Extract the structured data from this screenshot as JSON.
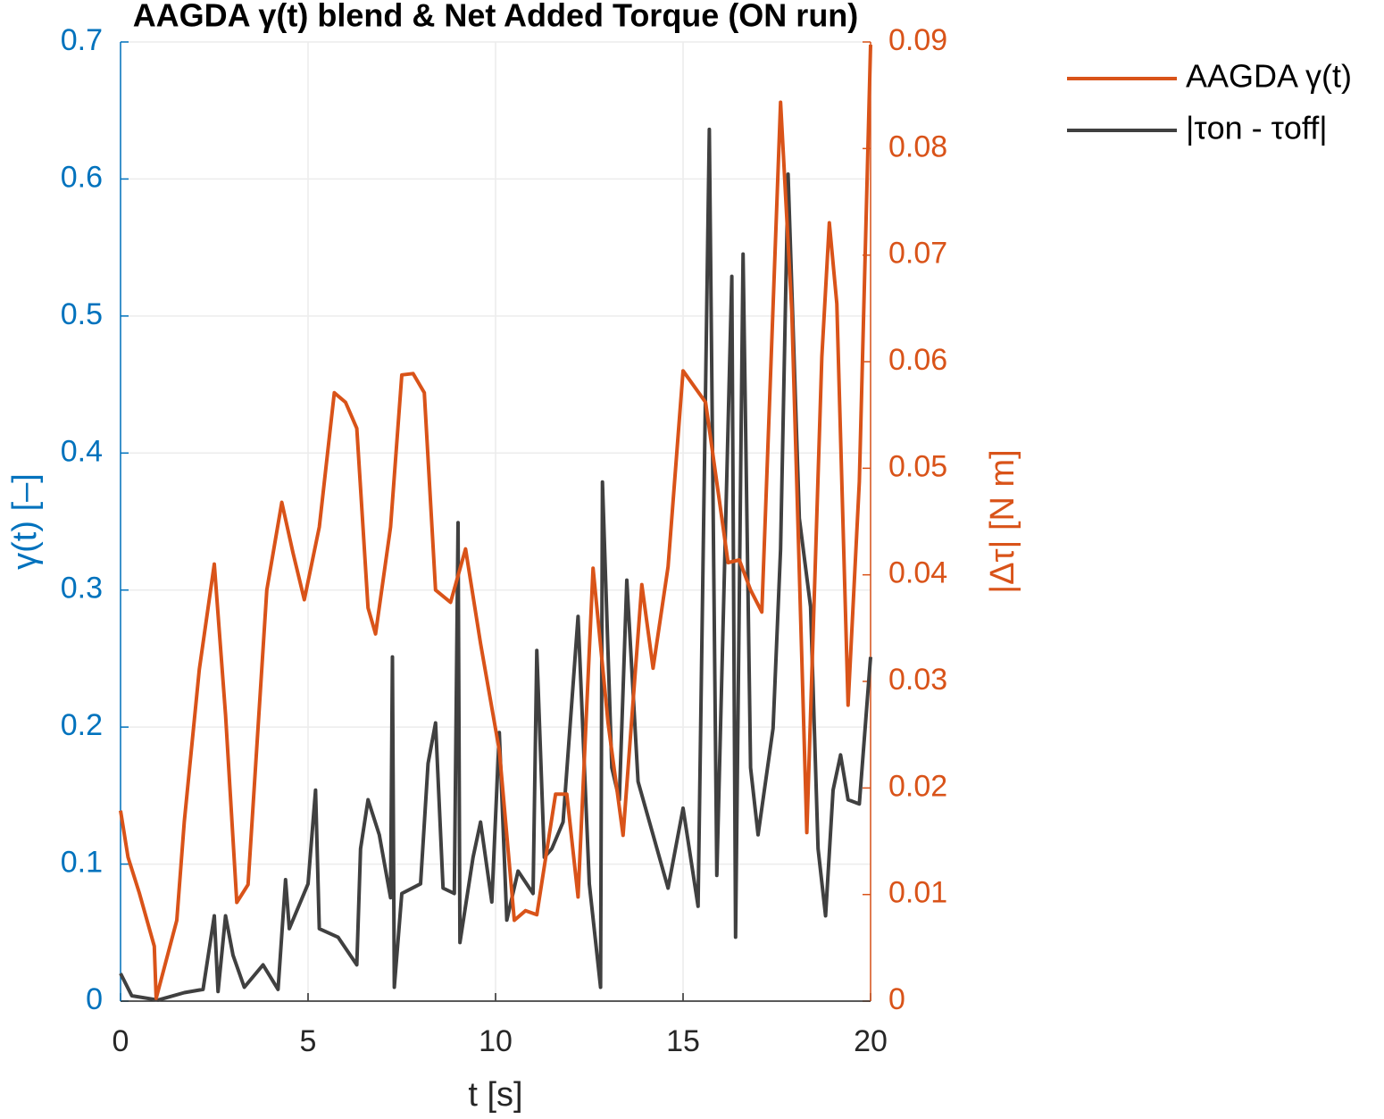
{
  "chart_data": {
    "type": "line",
    "title": "AAGDA γ(t) blend & Net Added Torque (ON run)",
    "x_label": "t [s]",
    "y_label": "γ(t) [–]",
    "y2_label": "|Δτ| [N m]",
    "xlim": [
      0,
      20
    ],
    "xticks": [
      0,
      5,
      10,
      15,
      20
    ],
    "ylim": [
      0,
      0.7
    ],
    "yticks": [
      0,
      0.1,
      0.2,
      0.3,
      0.4,
      0.5,
      0.6,
      0.7
    ],
    "y2lim": [
      0,
      0.09
    ],
    "y2ticks": [
      0,
      0.01,
      0.02,
      0.03,
      0.04,
      0.05,
      0.06,
      0.07,
      0.08,
      0.09
    ],
    "grid": true,
    "legend": "outside-right",
    "y_color": "#0072bd",
    "y2_color": "#d95319",
    "series": [
      {
        "name": "AAGDA γ(t)",
        "color": "#d95319",
        "axis": "y",
        "x": [
          0,
          0.2,
          0.5,
          0.9,
          0.95,
          1.5,
          1.7,
          2.1,
          2.5,
          2.8,
          3.1,
          3.4,
          3.9,
          4.3,
          4.6,
          4.9,
          5.3,
          5.7,
          6.0,
          6.3,
          6.6,
          6.8,
          7.2,
          7.5,
          7.8,
          8.1,
          8.4,
          8.8,
          9.2,
          9.6,
          10.1,
          10.5,
          10.8,
          11.1,
          11.6,
          11.9,
          12.2,
          12.6,
          13.0,
          13.4,
          13.9,
          14.2,
          14.6,
          15.0,
          15.6,
          16.2,
          16.5,
          16.8,
          17.1,
          17.6,
          17.9,
          18.3,
          18.7,
          18.9,
          19.1,
          19.4,
          19.7,
          20
        ],
        "values": [
          0.139,
          0.105,
          0.079,
          0.04,
          0.002,
          0.059,
          0.131,
          0.242,
          0.319,
          0.209,
          0.072,
          0.085,
          0.3,
          0.364,
          0.327,
          0.293,
          0.346,
          0.444,
          0.437,
          0.418,
          0.287,
          0.268,
          0.346,
          0.457,
          0.458,
          0.444,
          0.3,
          0.291,
          0.33,
          0.261,
          0.183,
          0.059,
          0.066,
          0.063,
          0.151,
          0.151,
          0.076,
          0.316,
          0.203,
          0.121,
          0.304,
          0.243,
          0.317,
          0.46,
          0.437,
          0.32,
          0.322,
          0.3,
          0.284,
          0.656,
          0.503,
          0.123,
          0.47,
          0.568,
          0.509,
          0.216,
          0.379,
          0.698
        ]
      },
      {
        "name": "|τon - τoff|",
        "color": "#404040",
        "axis": "y2",
        "x": [
          0,
          0.3,
          1.0,
          1.7,
          2.2,
          2.5,
          2.6,
          2.8,
          3.0,
          3.3,
          3.8,
          4.2,
          4.4,
          4.5,
          5.0,
          5.2,
          5.3,
          5.8,
          6.3,
          6.4,
          6.6,
          6.9,
          7.2,
          7.25,
          7.3,
          7.5,
          8.0,
          8.2,
          8.4,
          8.6,
          8.9,
          9.0,
          9.05,
          9.4,
          9.6,
          9.9,
          10.1,
          10.3,
          10.6,
          11.0,
          11.1,
          11.3,
          11.5,
          11.8,
          12.2,
          12.5,
          12.8,
          12.85,
          13.1,
          13.3,
          13.5,
          13.8,
          14.2,
          14.6,
          15.0,
          15.4,
          15.7,
          15.9,
          16.3,
          16.4,
          16.6,
          16.8,
          17.0,
          17.4,
          17.6,
          17.8,
          18.1,
          18.4,
          18.6,
          18.8,
          19.0,
          19.2,
          19.4,
          19.7,
          20.0
        ],
        "values": [
          0.0026,
          0.0005,
          0.0001,
          0.0008,
          0.0011,
          0.008,
          0.0009,
          0.008,
          0.0043,
          0.0013,
          0.0034,
          0.0011,
          0.0114,
          0.0068,
          0.011,
          0.0198,
          0.0068,
          0.006,
          0.0034,
          0.0143,
          0.0189,
          0.0156,
          0.0097,
          0.0323,
          0.0013,
          0.0101,
          0.011,
          0.0223,
          0.0261,
          0.0106,
          0.0101,
          0.0449,
          0.0055,
          0.0135,
          0.0168,
          0.0093,
          0.0252,
          0.0076,
          0.0122,
          0.0101,
          0.0329,
          0.0135,
          0.0143,
          0.0168,
          0.0361,
          0.011,
          0.0013,
          0.0487,
          0.0219,
          0.0189,
          0.0395,
          0.0206,
          0.0156,
          0.0106,
          0.0181,
          0.0089,
          0.0818,
          0.0118,
          0.068,
          0.006,
          0.0701,
          0.0219,
          0.0156,
          0.0256,
          0.0424,
          0.0776,
          0.0453,
          0.037,
          0.0143,
          0.008,
          0.0198,
          0.0231,
          0.0189,
          0.0185,
          0.0323
        ]
      }
    ]
  }
}
